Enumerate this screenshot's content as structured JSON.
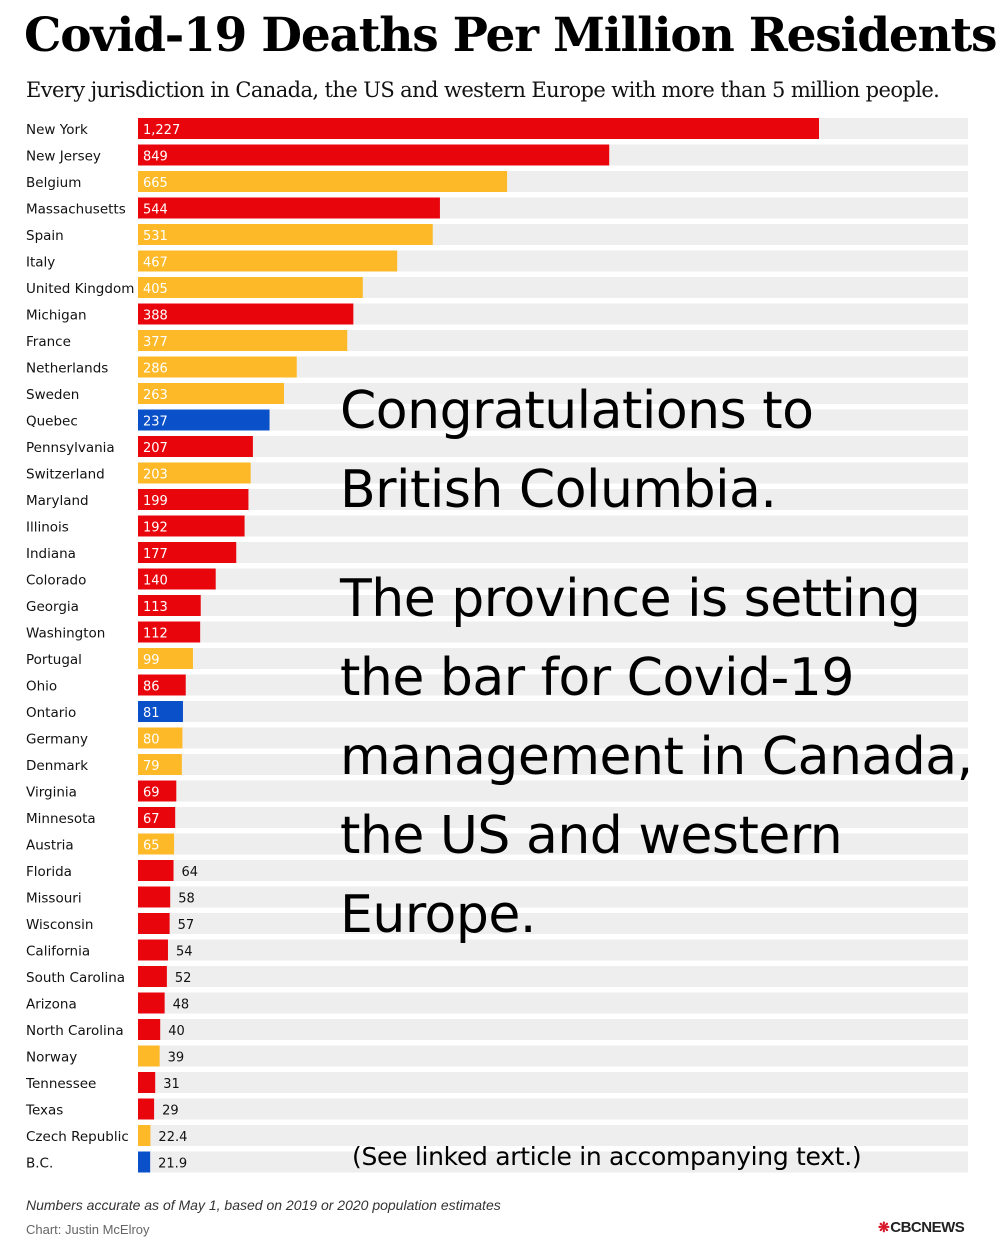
{
  "chart_data": {
    "type": "bar",
    "orientation": "horizontal",
    "title": "Covid-19 Deaths Per Million Residents",
    "subtitle": "Every jurisdiction in Canada, the US and western Europe with more than 5 million people.",
    "xlim": [
      0,
      1500
    ],
    "grid": false,
    "legend": "none",
    "colors": {
      "us": "#e8050c",
      "europe": "#fdb927",
      "canada": "#0a50c8",
      "track": "#eeeeee"
    },
    "categories": [
      "New York",
      "New Jersey",
      "Belgium",
      "Massachusetts",
      "Spain",
      "Italy",
      "United Kingdom",
      "Michigan",
      "France",
      "Netherlands",
      "Sweden",
      "Quebec",
      "Pennsylvania",
      "Switzerland",
      "Maryland",
      "Illinois",
      "Indiana",
      "Colorado",
      "Georgia",
      "Washington",
      "Portugal",
      "Ohio",
      "Ontario",
      "Germany",
      "Denmark",
      "Virginia",
      "Minnesota",
      "Austria",
      "Florida",
      "Missouri",
      "Wisconsin",
      "California",
      "South Carolina",
      "Arizona",
      "North Carolina",
      "Norway",
      "Tennessee",
      "Texas",
      "Czech Republic",
      "B.C."
    ],
    "values": [
      1227,
      849,
      665,
      544,
      531,
      467,
      405,
      388,
      377,
      286,
      263,
      237,
      207,
      203,
      199,
      192,
      177,
      140,
      113,
      112,
      99,
      86,
      81,
      80,
      79,
      69,
      67,
      65,
      64,
      58,
      57,
      54,
      52,
      48,
      40,
      39,
      31,
      29,
      22.4,
      21.9
    ],
    "value_labels": [
      "1,227",
      "849",
      "665",
      "544",
      "531",
      "467",
      "405",
      "388",
      "377",
      "286",
      "263",
      "237",
      "207",
      "203",
      "199",
      "192",
      "177",
      "140",
      "113",
      "112",
      "99",
      "86",
      "81",
      "80",
      "79",
      "69",
      "67",
      "65",
      "64",
      "58",
      "57",
      "54",
      "52",
      "48",
      "40",
      "39",
      "31",
      "29",
      "22.4",
      "21.9"
    ],
    "groups": [
      "us",
      "us",
      "europe",
      "us",
      "europe",
      "europe",
      "europe",
      "us",
      "europe",
      "europe",
      "europe",
      "canada",
      "us",
      "europe",
      "us",
      "us",
      "us",
      "us",
      "us",
      "us",
      "europe",
      "us",
      "canada",
      "europe",
      "europe",
      "us",
      "us",
      "europe",
      "us",
      "us",
      "us",
      "us",
      "us",
      "us",
      "us",
      "europe",
      "us",
      "us",
      "europe",
      "canada"
    ]
  },
  "overlay": {
    "line1": "Congratulations to British Columbia.",
    "line2": "The province is setting the bar for Covid-19 management in Canada, the US and western Europe.",
    "note": "(See linked article in accompanying text.)"
  },
  "footer": {
    "note": "Numbers accurate as of May 1, based on 2019 or 2020 population estimates",
    "credit": "Chart: Justin McElroy",
    "logo_mark": "❋",
    "logo": "CBCNEWS"
  }
}
